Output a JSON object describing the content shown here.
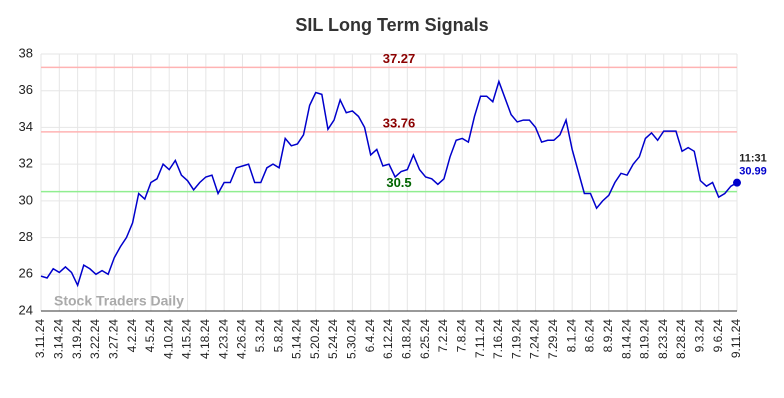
{
  "chart_data": {
    "type": "line",
    "title": "SIL Long Term Signals",
    "categories": [
      "3.11.24",
      null,
      null,
      "3.14.24",
      null,
      null,
      "3.19.24",
      null,
      null,
      "3.22.24",
      null,
      null,
      "3.27.24",
      null,
      null,
      "4.2.24",
      null,
      null,
      "4.5.24",
      null,
      null,
      "4.10.24",
      null,
      null,
      "4.15.24",
      null,
      null,
      "4.18.24",
      null,
      null,
      "4.23.24",
      null,
      null,
      "4.26.24",
      null,
      null,
      "5.3.24",
      null,
      null,
      "5.8.24",
      null,
      null,
      "5.14.24",
      null,
      null,
      "5.20.24",
      null,
      null,
      "5.24.24",
      null,
      null,
      "5.30.24",
      null,
      null,
      "6.4.24",
      null,
      null,
      "6.12.24",
      null,
      null,
      "6.18.24",
      null,
      null,
      "6.25.24",
      null,
      null,
      "7.2.24",
      null,
      null,
      "7.8.24",
      null,
      null,
      "7.11.24",
      null,
      null,
      "7.16.24",
      null,
      null,
      "7.19.24",
      null,
      null,
      "7.24.24",
      null,
      null,
      "7.29.24",
      null,
      null,
      "8.1.24",
      null,
      null,
      "8.6.24",
      null,
      null,
      "8.9.24",
      null,
      null,
      "8.14.24",
      null,
      null,
      "8.19.24",
      null,
      null,
      "8.23.24",
      null,
      null,
      "8.28.24",
      null,
      null,
      "9.3.24",
      null,
      null,
      "9.6.24",
      null,
      null,
      "9.11.24"
    ],
    "values": [
      25.9,
      25.8,
      26.3,
      26.1,
      26.4,
      26.1,
      25.4,
      26.5,
      26.3,
      26.0,
      26.2,
      26.0,
      26.9,
      27.5,
      28.0,
      28.8,
      30.4,
      30.1,
      31.0,
      31.2,
      32.0,
      31.7,
      32.2,
      31.4,
      31.1,
      30.6,
      31.0,
      31.3,
      31.4,
      30.4,
      31.0,
      31.0,
      31.8,
      31.9,
      32.0,
      31.0,
      31.0,
      31.8,
      32.0,
      31.8,
      33.4,
      33.0,
      33.1,
      33.6,
      35.2,
      35.9,
      35.8,
      33.9,
      34.4,
      35.5,
      34.8,
      34.9,
      34.6,
      34.0,
      32.5,
      32.8,
      31.9,
      32.0,
      31.3,
      31.6,
      31.7,
      32.5,
      31.7,
      31.3,
      31.2,
      30.9,
      31.2,
      32.4,
      33.3,
      33.4,
      33.2,
      34.6,
      35.7,
      35.7,
      35.4,
      36.5,
      35.6,
      34.7,
      34.3,
      34.4,
      34.4,
      34.0,
      33.2,
      33.3,
      33.3,
      33.6,
      34.4,
      32.8,
      31.6,
      30.4,
      30.4,
      29.6,
      30.0,
      30.3,
      31.0,
      31.5,
      31.4,
      32.0,
      32.4,
      33.4,
      33.7,
      33.3,
      33.8,
      33.8,
      33.8,
      32.7,
      32.9,
      32.7,
      31.1,
      30.8,
      31.0,
      30.2,
      30.4,
      30.8,
      30.99
    ],
    "color": "#0000cc",
    "ylim": [
      24,
      38
    ],
    "yticks": [
      24,
      26,
      28,
      30,
      32,
      34,
      36,
      38
    ],
    "grid": true,
    "hlines": [
      {
        "value": 37.27,
        "color": "#ffb3b3",
        "label_color": "#8b0000"
      },
      {
        "value": 33.76,
        "color": "#ffb3b3",
        "label_color": "#8b0000"
      },
      {
        "value": 30.5,
        "color": "#90ee90",
        "label_color": "#006400"
      }
    ],
    "last_time": "11:31",
    "watermark": "Stock Traders Daily"
  }
}
